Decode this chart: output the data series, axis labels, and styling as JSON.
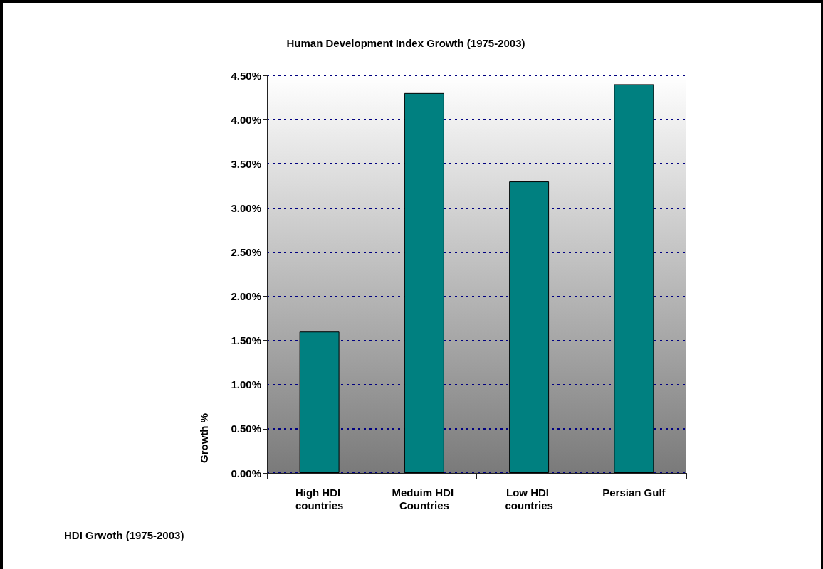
{
  "chart_data": {
    "type": "bar",
    "title": "Human Development Index Growth (1975-2003)",
    "xlabel": "HDI Grwoth (1975-2003)",
    "ylabel": "Growth %",
    "categories": [
      "High HDI countries",
      "Meduim HDI Countries",
      "Low HDI countries",
      "Persian Gulf"
    ],
    "values": [
      1.6,
      4.3,
      3.3,
      4.4
    ],
    "color": "#008080",
    "ylim": [
      0,
      4.5
    ],
    "yticks": [
      {
        "value": 0,
        "label": "0.00%"
      },
      {
        "value": 0.5,
        "label": "0.50%"
      },
      {
        "value": 1,
        "label": "1.00%"
      },
      {
        "value": 1.5,
        "label": "1.50%"
      },
      {
        "value": 2,
        "label": "2.00%"
      },
      {
        "value": 2.5,
        "label": "2.50%"
      },
      {
        "value": 3,
        "label": "3.00%"
      },
      {
        "value": 3.5,
        "label": "3.50%"
      },
      {
        "value": 4,
        "label": "4.00%"
      },
      {
        "value": 4.5,
        "label": "4.50%"
      }
    ],
    "grid": "y"
  }
}
